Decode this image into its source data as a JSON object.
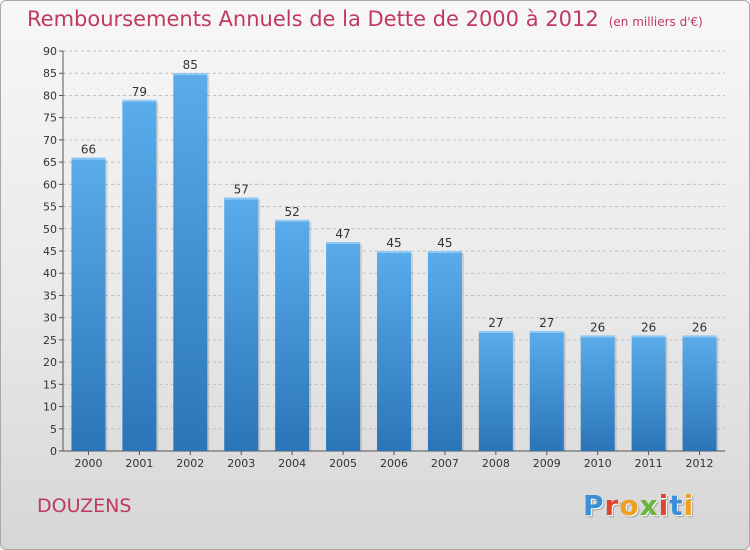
{
  "header": {
    "title": "Remboursements Annuels de la Dette de 2000 à 2012",
    "unit": "(en milliers d'€)"
  },
  "commune": "DOUZENS",
  "logo": {
    "text": "Proxiti"
  },
  "colors": {
    "title": "#c0395f",
    "bar_top": "#5aaceb",
    "bar_bottom": "#2a75b8",
    "grid": "#bfbfbf",
    "axis": "#555555"
  },
  "chart_data": {
    "type": "bar",
    "title": "Remboursements Annuels de la Dette de 2000 à 2012",
    "xlabel": "",
    "ylabel": "",
    "categories": [
      "2000",
      "2001",
      "2002",
      "2003",
      "2004",
      "2005",
      "2006",
      "2007",
      "2008",
      "2009",
      "2010",
      "2011",
      "2012"
    ],
    "values": [
      66,
      79,
      85,
      57,
      52,
      47,
      45,
      45,
      27,
      27,
      26,
      26,
      26
    ],
    "ylim": [
      0,
      90
    ],
    "yticks": [
      0,
      5,
      10,
      15,
      20,
      25,
      30,
      35,
      40,
      45,
      50,
      55,
      60,
      65,
      70,
      75,
      80,
      85,
      90
    ],
    "grid": true,
    "data_labels": true
  }
}
